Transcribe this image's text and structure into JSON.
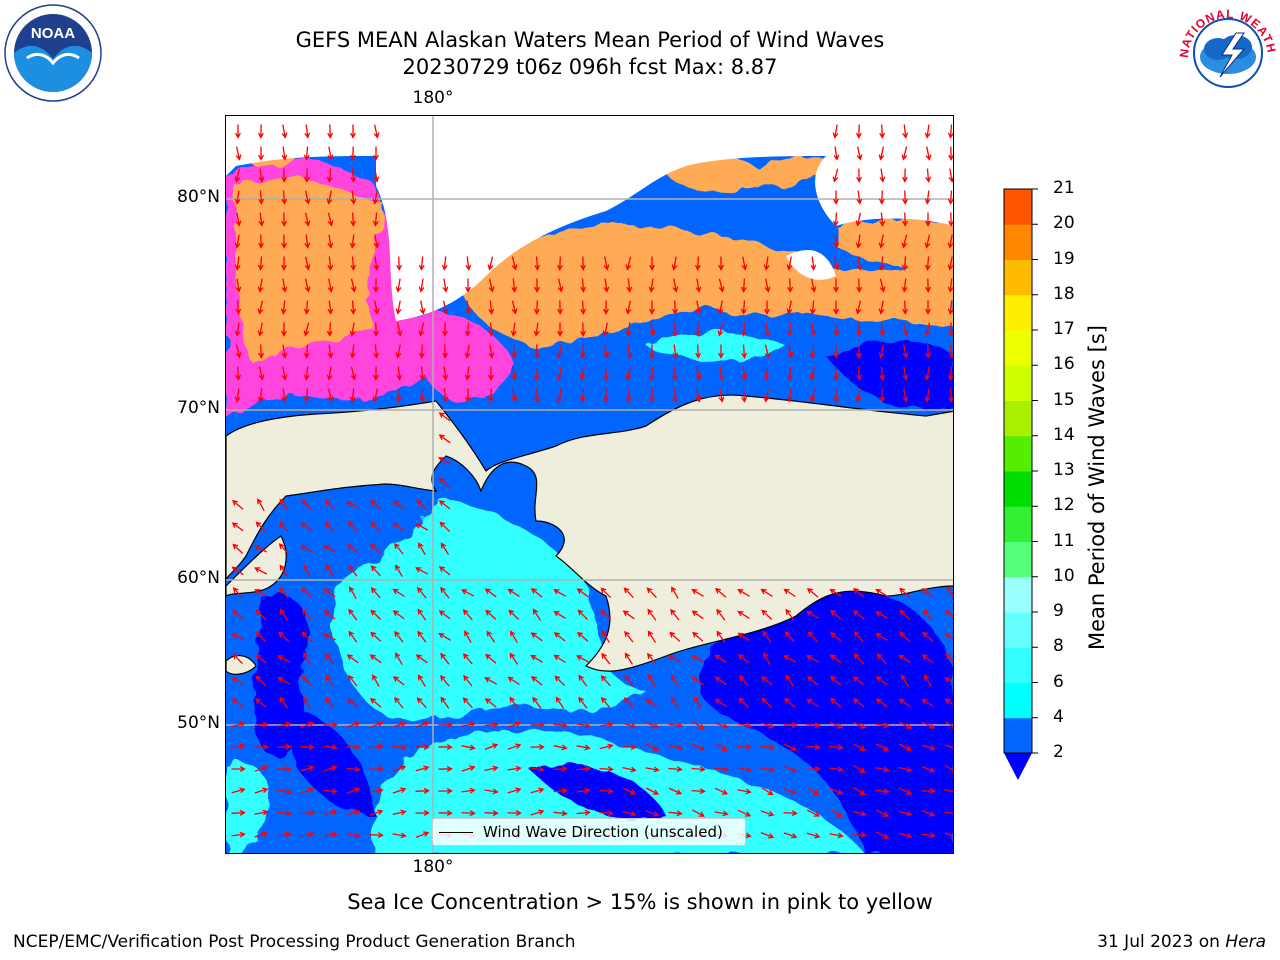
{
  "title": {
    "line1": "GEFS MEAN Alaskan Waters Mean Period of Wind Waves",
    "line2": "20230729 t06z 096h fcst   Max: 8.87"
  },
  "map": {
    "lon_labels": {
      "top": "180°",
      "bottom": "180°"
    },
    "lat_labels": [
      "80°N",
      "70°N",
      "60°N",
      "50°N"
    ],
    "legend": "Wind Wave Direction (unscaled)",
    "colors": {
      "land": "#efeedd",
      "gridline": "#b0b0b0",
      "arrow": "#ff0000"
    }
  },
  "colorbar": {
    "label": "Mean Period of Wind Waves [s]",
    "ticks": [
      "2",
      "4",
      "6",
      "8",
      "9",
      "10",
      "11",
      "12",
      "13",
      "14",
      "15",
      "16",
      "17",
      "18",
      "19",
      "20",
      "21"
    ],
    "colors": [
      "#0066ff",
      "#00ffff",
      "#33ffff",
      "#66ffff",
      "#99ffff",
      "#55ff77",
      "#33ee33",
      "#00dd00",
      "#55ee00",
      "#aaee00",
      "#ccff00",
      "#eeff00",
      "#ffee00",
      "#ffbb00",
      "#ff8800",
      "#ff5500",
      "#ff2200",
      "#ff0000"
    ],
    "under_color": "#0000ff"
  },
  "logos": {
    "noaa_text": "NOAA",
    "nws_text": "NATIONAL WEATHER SERVICE"
  },
  "caption": "Sea Ice Concentration > 15% is shown in pink to yellow",
  "footer": {
    "left": "NCEP/EMC/Verification Post Processing Product Generation Branch",
    "date": "31 Jul 2023 on ",
    "machine": "Hera"
  }
}
